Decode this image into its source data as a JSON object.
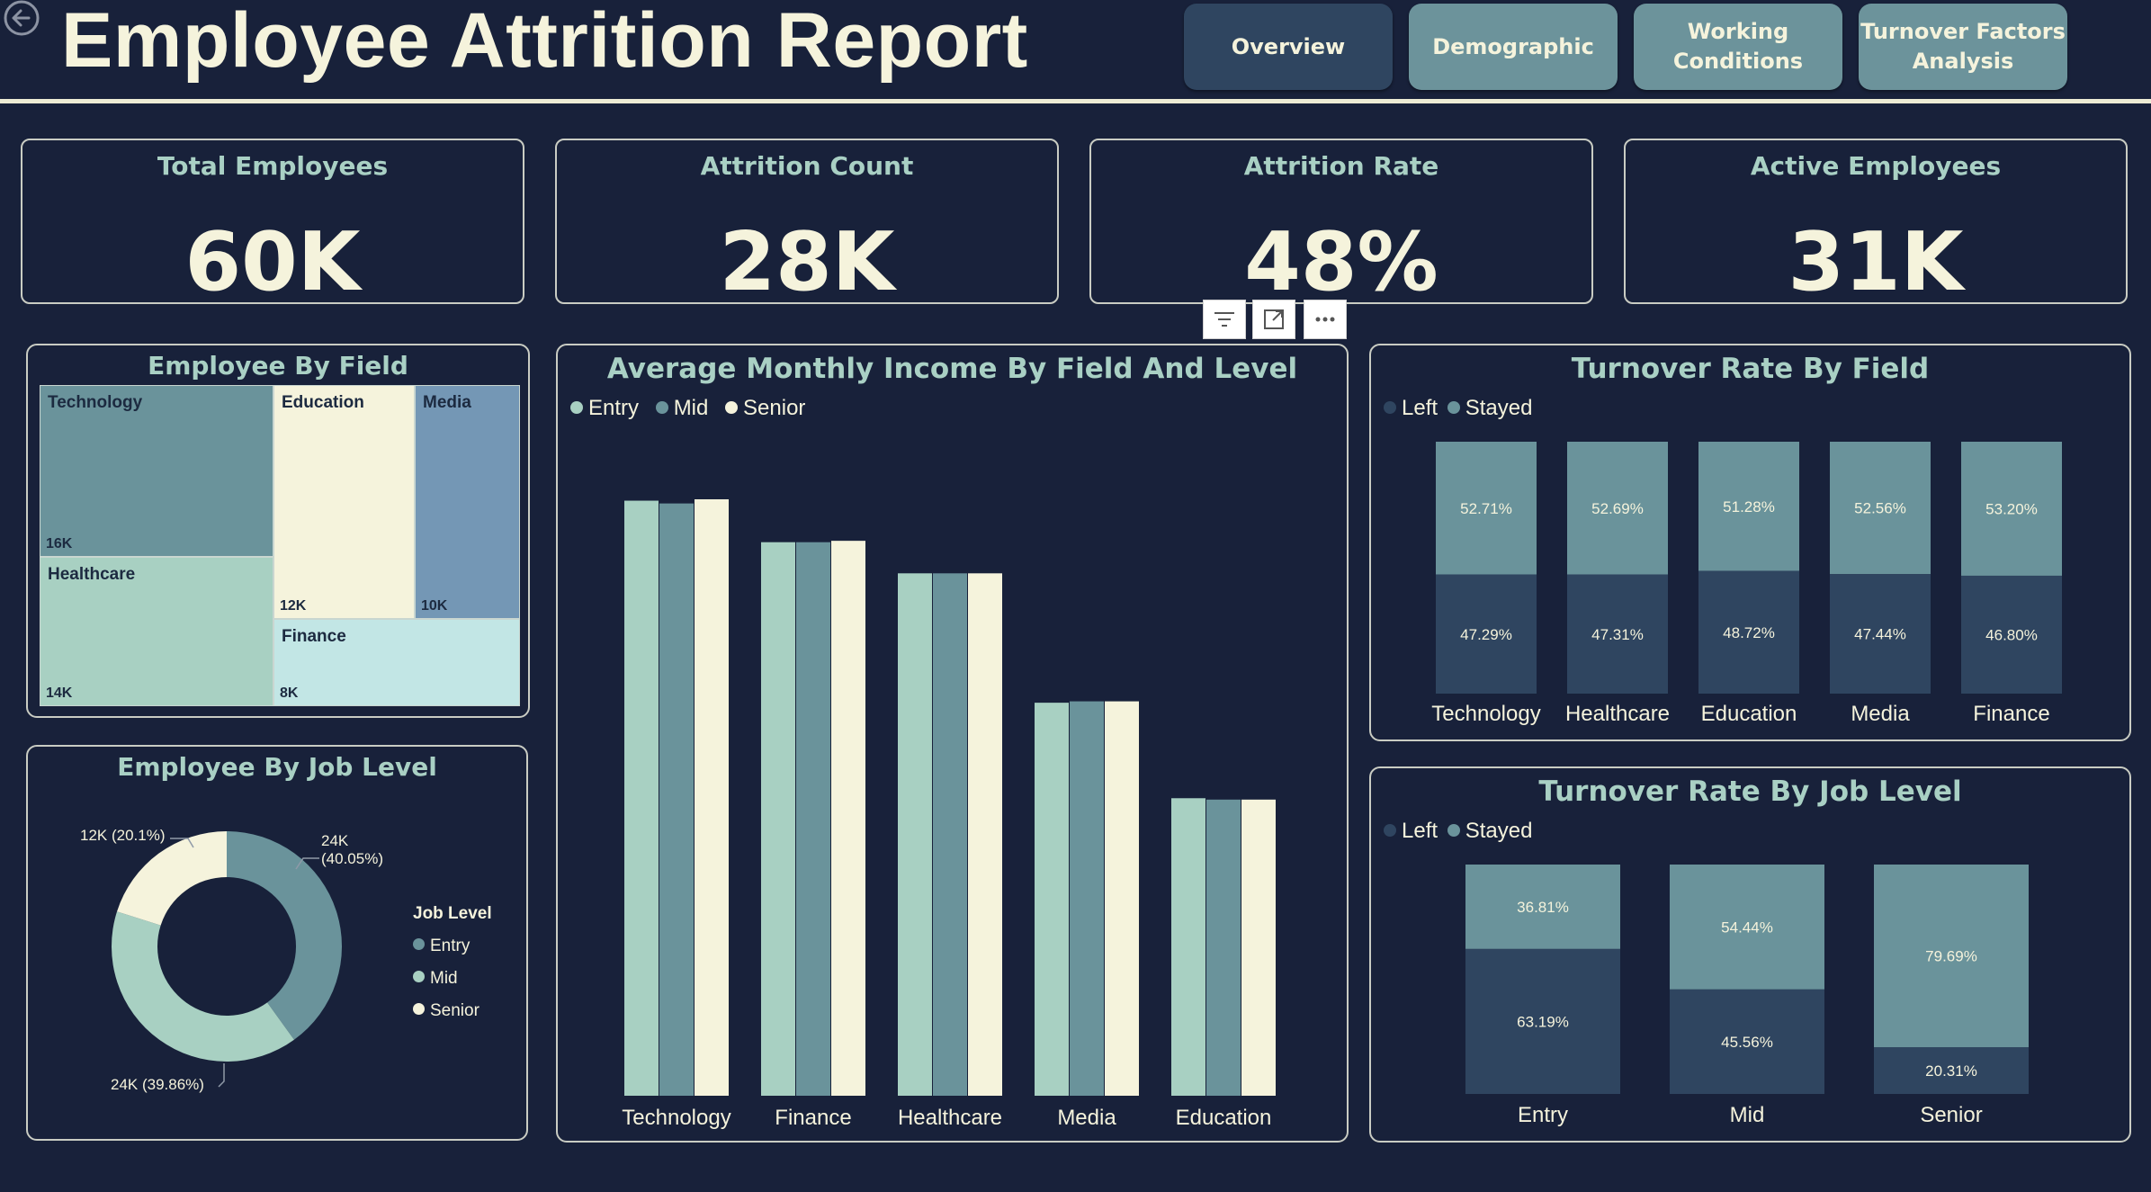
{
  "header": {
    "title": "Employee Attrition Report",
    "nav": [
      "Overview",
      "Demographic",
      "Working\nConditions",
      "Turnover Factors\nAnalysis"
    ]
  },
  "kpis": [
    {
      "label": "Total Employees",
      "value": "60K"
    },
    {
      "label": "Attrition Count",
      "value": "28K"
    },
    {
      "label": "Attrition Rate",
      "value": "48%"
    },
    {
      "label": "Active Employees",
      "value": "31K"
    }
  ],
  "colors": {
    "background": "#18213a",
    "accent_dark": "#2f4560",
    "accent_mid": "#6c939b",
    "accent_light": "#a8d0c2",
    "cream": "#f5f3dc"
  },
  "chart_data": [
    {
      "type": "treemap",
      "title": "Employee By Field",
      "categories": [
        "Technology",
        "Education",
        "Media",
        "Healthcare",
        "Finance"
      ],
      "values": [
        16,
        12,
        10,
        14,
        8
      ],
      "labels": [
        "16K",
        "12K",
        "10K",
        "14K",
        "8K"
      ]
    },
    {
      "type": "pie",
      "title": "Employee By Job Level",
      "legend_title": "Job Level",
      "categories": [
        "Entry",
        "Mid",
        "Senior"
      ],
      "values": [
        40.05,
        39.86,
        20.1
      ],
      "labels": [
        "24K\n(40.05%)",
        "24K (39.86%)",
        "12K (20.1%)"
      ],
      "legend_position": "right"
    },
    {
      "type": "bar",
      "title": "Average Monthly Income By Field And Level",
      "categories": [
        "Technology",
        "Finance",
        "Healthcare",
        "Media",
        "Education"
      ],
      "series": [
        {
          "name": "Entry",
          "values": [
            8600,
            8000,
            7550,
            5680,
            4300
          ]
        },
        {
          "name": "Mid",
          "values": [
            8560,
            8000,
            7550,
            5700,
            4280
          ]
        },
        {
          "name": "Senior",
          "values": [
            8620,
            8020,
            7550,
            5700,
            4280
          ]
        }
      ],
      "legend_position": "top-left"
    },
    {
      "type": "bar",
      "stacked": true,
      "title": "Turnover Rate By Field",
      "categories": [
        "Technology",
        "Healthcare",
        "Education",
        "Media",
        "Finance"
      ],
      "series": [
        {
          "name": "Left",
          "values": [
            47.29,
            47.31,
            48.72,
            47.44,
            46.8
          ],
          "labels": [
            "47.29%",
            "47.31%",
            "48.72%",
            "47.44%",
            "46.80%"
          ]
        },
        {
          "name": "Stayed",
          "values": [
            52.71,
            52.69,
            51.28,
            52.56,
            53.2
          ],
          "labels": [
            "52.71%",
            "52.69%",
            "51.28%",
            "52.56%",
            "53.20%"
          ]
        }
      ],
      "legend_position": "top-left"
    },
    {
      "type": "bar",
      "stacked": true,
      "title": "Turnover Rate By Job Level",
      "categories": [
        "Entry",
        "Mid",
        "Senior"
      ],
      "series": [
        {
          "name": "Left",
          "values": [
            63.19,
            45.56,
            20.31
          ],
          "labels": [
            "63.19%",
            "45.56%",
            "20.31%"
          ]
        },
        {
          "name": "Stayed",
          "values": [
            36.81,
            54.44,
            79.69
          ],
          "labels": [
            "36.81%",
            "54.44%",
            "79.69%"
          ]
        }
      ],
      "legend_position": "top-left"
    }
  ]
}
